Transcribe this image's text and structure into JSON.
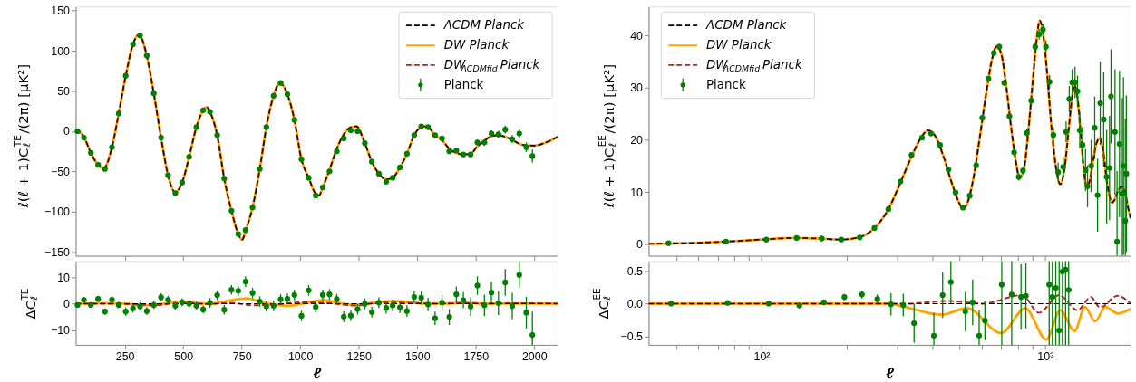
{
  "chart_data": [
    {
      "type": "line",
      "ylabel": "ℓ(ℓ + 1)C$_{ℓ}$$^{TE}$/(2π)   [μK²]",
      "xlim": [
        40,
        2100
      ],
      "xticks": [
        250,
        500,
        750,
        1000,
        1250,
        1500,
        1750,
        2000
      ],
      "ylim": [
        -155,
        155
      ],
      "yticks": [
        -150,
        -100,
        -50,
        0,
        50,
        100,
        150
      ],
      "tick_labels": "y",
      "legend": "top right",
      "series": [
        {
          "name": "ΛCDM  Planck",
          "color": "#000000",
          "line_style": "dashed",
          "x": [
            40,
            75,
            105,
            136,
            160,
            195,
            224,
            254,
            285,
            310,
            344,
            374,
            405,
            435,
            465,
            495,
            525,
            556,
            585,
            600,
            614,
            645,
            675,
            706,
            735,
            752,
            766,
            796,
            827,
            855,
            886,
            912,
            945,
            975,
            1005,
            1036,
            1066,
            1080,
            1096,
            1125,
            1156,
            1186,
            1216,
            1240,
            1276,
            1306,
            1336,
            1367,
            1395,
            1426,
            1456,
            1487,
            1525,
            1546,
            1576,
            1606,
            1637,
            1667,
            1697,
            1728,
            1757,
            1787,
            1817,
            1847,
            1876,
            1906,
            1950,
            2000,
            2050,
            2100
          ],
          "values": [
            2,
            -7,
            -27,
            -42,
            -46,
            -20,
            22,
            69,
            108,
            120,
            94,
            47,
            -8,
            -55,
            -76,
            -64,
            -32,
            5,
            26,
            30,
            24,
            -5,
            -59,
            -99,
            -128,
            -135,
            -124,
            -95,
            -47,
            5,
            44,
            60,
            46,
            14,
            -35,
            -58,
            -78,
            -80,
            -70,
            -48,
            -22,
            -4,
            5,
            6,
            -15,
            -38,
            -53,
            -60,
            -58,
            -45,
            -28,
            -5,
            6,
            5,
            -5,
            -11,
            -22,
            -27,
            -29,
            -28,
            -19,
            -12,
            -6,
            -5,
            -7,
            -11,
            -17,
            -18,
            -14,
            -7
          ]
        },
        {
          "name": "DW  Planck",
          "color": "#ffa500",
          "line_style": "solid",
          "x": [
            40,
            75,
            105,
            136,
            160,
            195,
            224,
            254,
            285,
            310,
            344,
            374,
            405,
            435,
            465,
            495,
            525,
            556,
            585,
            600,
            614,
            645,
            675,
            706,
            735,
            752,
            766,
            796,
            827,
            855,
            886,
            912,
            945,
            975,
            1005,
            1036,
            1066,
            1080,
            1096,
            1125,
            1156,
            1186,
            1216,
            1240,
            1276,
            1306,
            1336,
            1367,
            1395,
            1426,
            1456,
            1487,
            1525,
            1546,
            1576,
            1606,
            1637,
            1667,
            1697,
            1728,
            1757,
            1787,
            1817,
            1847,
            1876,
            1906,
            1950,
            2000,
            2050,
            2100
          ],
          "values": [
            2,
            -7,
            -27,
            -42,
            -46,
            -20,
            22,
            69,
            108,
            120,
            94,
            47,
            -8,
            -55,
            -76,
            -64,
            -32,
            5,
            26,
            30,
            24,
            -5,
            -59,
            -99,
            -128,
            -135,
            -124,
            -95,
            -47,
            5,
            44,
            60,
            46,
            14,
            -35,
            -58,
            -78,
            -80,
            -70,
            -48,
            -22,
            -4,
            5,
            6,
            -15,
            -38,
            -53,
            -60,
            -58,
            -45,
            -28,
            -5,
            6,
            5,
            -5,
            -11,
            -22,
            -27,
            -29,
            -28,
            -19,
            -12,
            -6,
            -5,
            -7,
            -11,
            -17,
            -18,
            -14,
            -7
          ]
        },
        {
          "name": "DW$_{ΛCDMfid}$  Planck",
          "color": "#a52a2a",
          "line_style": "dashed",
          "x": [
            40,
            75,
            105,
            136,
            160,
            195,
            224,
            254,
            285,
            310,
            344,
            374,
            405,
            435,
            465,
            495,
            525,
            556,
            585,
            600,
            614,
            645,
            675,
            706,
            735,
            752,
            766,
            796,
            827,
            855,
            886,
            912,
            945,
            975,
            1005,
            1036,
            1066,
            1080,
            1096,
            1125,
            1156,
            1186,
            1216,
            1240,
            1276,
            1306,
            1336,
            1367,
            1395,
            1426,
            1456,
            1487,
            1525,
            1546,
            1576,
            1606,
            1637,
            1667,
            1697,
            1728,
            1757,
            1787,
            1817,
            1847,
            1876,
            1906,
            1950,
            2000,
            2050,
            2100
          ],
          "values": [
            2,
            -7,
            -27,
            -42,
            -46,
            -20,
            22,
            69,
            108,
            120,
            94,
            47,
            -8,
            -55,
            -76,
            -64,
            -32,
            5,
            26,
            30,
            24,
            -5,
            -59,
            -99,
            -128,
            -135,
            -124,
            -95,
            -47,
            5,
            44,
            60,
            46,
            14,
            -35,
            -58,
            -78,
            -80,
            -70,
            -48,
            -22,
            -4,
            5,
            6,
            -15,
            -38,
            -53,
            -60,
            -58,
            -45,
            -28,
            -5,
            6,
            5,
            -5,
            -11,
            -22,
            -27,
            -29,
            -28,
            -19,
            -12,
            -6,
            -5,
            -7,
            -11,
            -17,
            -18,
            -14,
            -7
          ]
        },
        {
          "name": "Planck",
          "color": "#008000",
          "type": "scatter",
          "marker": "circle",
          "x": [
            48,
            75,
            105,
            136,
            165,
            195,
            224,
            254,
            285,
            315,
            344,
            374,
            405,
            435,
            466,
            495,
            525,
            556,
            585,
            614,
            645,
            675,
            706,
            735,
            766,
            796,
            827,
            855,
            886,
            916,
            945,
            975,
            1005,
            1036,
            1066,
            1096,
            1125,
            1156,
            1186,
            1216,
            1245,
            1276,
            1306,
            1336,
            1367,
            1395,
            1426,
            1456,
            1487,
            1517,
            1546,
            1576,
            1606,
            1637,
            1667,
            1697,
            1728,
            1757,
            1787,
            1817,
            1847,
            1876,
            1906,
            1936,
            1966,
            1992
          ],
          "values": [
            0,
            -8,
            -27,
            -42,
            -47,
            -20,
            22,
            69,
            108,
            119,
            94,
            47,
            -8,
            -55,
            -77,
            -64,
            -32,
            5,
            26,
            24,
            -5,
            -59,
            -99,
            -128,
            -123,
            -95,
            -47,
            5,
            44,
            60,
            46,
            14,
            -35,
            -58,
            -80,
            -70,
            -50,
            -25,
            -9,
            1,
            0,
            -15,
            -38,
            -53,
            -63,
            -58,
            -45,
            -28,
            -5,
            6,
            5,
            -5,
            -9,
            -25,
            -24,
            -29,
            -29,
            -14,
            -14,
            -3,
            -4,
            2,
            -10,
            -3,
            -20,
            -31
          ],
          "errors": [
            1,
            1,
            1,
            1.2,
            1.2,
            1.2,
            1.2,
            1.5,
            1.5,
            1.5,
            1.5,
            1.5,
            1.5,
            1.5,
            1.5,
            1.5,
            1.5,
            1.5,
            1.5,
            1.8,
            1.8,
            1.8,
            1.8,
            1.8,
            2,
            2,
            2,
            2,
            2,
            2,
            2,
            2,
            2,
            2,
            2,
            2,
            2,
            2,
            2,
            2,
            2,
            2,
            2,
            2,
            2.2,
            2.2,
            2.2,
            2.2,
            2.2,
            2.5,
            2.5,
            2.5,
            3,
            3,
            3,
            3,
            3.5,
            3.5,
            4,
            4,
            4.5,
            5,
            5,
            5,
            6,
            8
          ]
        }
      ]
    },
    {
      "type": "line",
      "ylabel": "ℓ(ℓ + 1)C$_{ℓ}$$^{EE}$/(2π)   [μK²]",
      "log": "x",
      "xlim": [
        40,
        2000
      ],
      "xticks": [
        {
          "value": 50,
          "label": null
        },
        {
          "value": 60,
          "label": null
        },
        {
          "value": 70,
          "label": null
        },
        {
          "value": 80,
          "label": null
        },
        {
          "value": 90,
          "label": null
        },
        {
          "value": 100,
          "label": null
        },
        {
          "value": 200,
          "label": null
        },
        {
          "value": 300,
          "label": null
        },
        {
          "value": 400,
          "label": null
        },
        {
          "value": 500,
          "label": null
        },
        {
          "value": 600,
          "label": null
        },
        {
          "value": 700,
          "label": null
        },
        {
          "value": 800,
          "label": null
        },
        {
          "value": 900,
          "label": null
        },
        {
          "value": 1000,
          "label": null
        },
        {
          "value": 2000,
          "label": null
        }
      ],
      "ylim": [
        -2.2,
        45.5
      ],
      "yticks": [
        0,
        10,
        20,
        30,
        40
      ],
      "tick_labels": "y",
      "legend": "top left",
      "series": [
        {
          "name": "ΛCDM  Planck",
          "color": "#000000",
          "line_style": "dashed",
          "x": [
            40,
            60,
            80,
            100,
            130,
            160,
            190,
            220,
            250,
            280,
            310,
            340,
            365,
            386,
            410,
            440,
            470,
            495,
            513,
            535,
            560,
            590,
            620,
            650,
            675,
            700,
            730,
            760,
            790,
            812,
            840,
            870,
            900,
            930,
            957,
            985,
            1015,
            1050,
            1090,
            1130,
            1170,
            1210,
            1240,
            1269,
            1300,
            1340,
            1370,
            1399,
            1440,
            1480,
            1520,
            1559,
            1600,
            1650,
            1700,
            1723,
            1760,
            1800,
            1840,
            1875,
            1920,
            1960,
            2000
          ],
          "values": [
            0.1,
            0.3,
            0.6,
            0.9,
            1.2,
            1.1,
            0.9,
            1.3,
            3.1,
            6.7,
            12,
            17.1,
            20.4,
            21.8,
            20.7,
            16.5,
            11.5,
            8.2,
            6.8,
            8.3,
            13,
            21,
            29,
            35.5,
            37.9,
            36.5,
            30,
            22,
            15.5,
            12.7,
            14.2,
            21,
            30,
            38.5,
            42.8,
            40,
            33,
            23,
            15,
            11.5,
            14.5,
            22,
            27.5,
            30.5,
            28,
            20,
            14,
            11,
            12.5,
            16.5,
            19.5,
            20.3,
            18,
            12,
            8.5,
            8,
            8.6,
            10,
            10.9,
            11,
            9.5,
            7,
            5
          ]
        },
        {
          "name": "DW  Planck",
          "color": "#ffa500",
          "line_style": "solid",
          "x": [
            40,
            60,
            80,
            100,
            130,
            160,
            190,
            220,
            250,
            280,
            310,
            340,
            365,
            386,
            410,
            440,
            470,
            495,
            513,
            535,
            560,
            590,
            620,
            650,
            675,
            700,
            730,
            760,
            790,
            812,
            840,
            870,
            900,
            930,
            957,
            985,
            1015,
            1050,
            1090,
            1130,
            1170,
            1210,
            1240,
            1269,
            1300,
            1340,
            1370,
            1399,
            1440,
            1480,
            1520,
            1559,
            1600,
            1650,
            1700,
            1723,
            1760,
            1800,
            1840,
            1875,
            1920,
            1960,
            2000
          ],
          "values": [
            0.1,
            0.3,
            0.6,
            0.9,
            1.2,
            1.1,
            0.9,
            1.3,
            3.1,
            6.7,
            12,
            17.1,
            20.4,
            21.8,
            20.7,
            16.5,
            11.5,
            8.2,
            6.8,
            8.3,
            13,
            21,
            29,
            35.5,
            37.9,
            36.5,
            30,
            22,
            15.5,
            12.7,
            14.2,
            21,
            30,
            38.5,
            42.8,
            40,
            33,
            23,
            15,
            11.5,
            14.5,
            22,
            27.5,
            30.5,
            28,
            20,
            14,
            11,
            12.5,
            16.5,
            19.5,
            20.3,
            18,
            12,
            8.5,
            8,
            8.6,
            10,
            10.9,
            11,
            9.5,
            7,
            5
          ]
        },
        {
          "name": "DW$_{ΛCDMfid}$  Planck",
          "color": "#a52a2a",
          "line_style": "dashed",
          "x": [
            40,
            60,
            80,
            100,
            130,
            160,
            190,
            220,
            250,
            280,
            310,
            340,
            365,
            386,
            410,
            440,
            470,
            495,
            513,
            535,
            560,
            590,
            620,
            650,
            675,
            700,
            730,
            760,
            790,
            812,
            840,
            870,
            900,
            930,
            957,
            985,
            1015,
            1050,
            1090,
            1130,
            1170,
            1210,
            1240,
            1269,
            1300,
            1340,
            1370,
            1399,
            1440,
            1480,
            1520,
            1559,
            1600,
            1650,
            1700,
            1723,
            1760,
            1800,
            1840,
            1875,
            1920,
            1960,
            2000
          ],
          "values": [
            0.1,
            0.3,
            0.6,
            0.9,
            1.2,
            1.1,
            0.9,
            1.3,
            3.1,
            6.7,
            12,
            17.1,
            20.4,
            21.8,
            20.7,
            16.5,
            11.5,
            8.2,
            6.8,
            8.3,
            13,
            21,
            29,
            35.5,
            37.9,
            36.5,
            30,
            22,
            15.5,
            12.7,
            14.2,
            21,
            30,
            38.5,
            42.8,
            40,
            33,
            23,
            15,
            11.5,
            14.5,
            22,
            27.5,
            30.5,
            28,
            20,
            14,
            11,
            12.5,
            16.5,
            19.5,
            20.3,
            18,
            12,
            8.5,
            8,
            8.6,
            10,
            10.9,
            11,
            9.5,
            7,
            5
          ]
        },
        {
          "name": "Planck",
          "color": "#008000",
          "type": "scatter",
          "marker": "circle",
          "x": [
            47,
            75,
            104,
            133,
            163,
            191,
            222,
            250,
            280,
            309,
            338,
            368,
            396,
            426,
            456,
            483,
            513,
            542,
            571,
            600,
            631,
            659,
            689,
            717,
            748,
            777,
            807,
            835,
            862,
            893,
            922,
            952,
            982,
            1006,
            1036,
            1069,
            1111,
            1157,
            1185,
            1216,
            1245,
            1274,
            1300,
            1324,
            1355,
            1387,
            1410,
            1452,
            1495,
            1530,
            1563,
            1608,
            1647,
            1686,
            1706,
            1762,
            1792,
            1828,
            1871,
            1888,
            1916,
            1932
          ],
          "values": [
            0.2,
            0.5,
            0.9,
            1.2,
            1.1,
            0.9,
            1.3,
            3.1,
            6.7,
            12.0,
            17.1,
            20.4,
            21.2,
            19.0,
            14.3,
            9.9,
            7.0,
            9.3,
            15.1,
            24.2,
            31.7,
            36.6,
            37.8,
            30.9,
            24.5,
            17.6,
            12.9,
            14.1,
            21.3,
            27.5,
            37.8,
            40.2,
            41.1,
            37.8,
            31.1,
            20.9,
            13.8,
            14.8,
            21.5,
            27.8,
            31.0,
            31.0,
            29.3,
            21.8,
            19.0,
            14.2,
            11.1,
            15.0,
            22.3,
            9.4,
            27.0,
            23.9,
            12.9,
            14.6,
            28.3,
            21.5,
            0.5,
            19.2,
            9.7,
            15.0,
            4.5,
            13.5
          ],
          "errors": [
            0.3,
            0.3,
            0.3,
            0.3,
            0.3,
            0.3,
            0.3,
            0.3,
            0.3,
            0.4,
            0.4,
            0.4,
            0.4,
            0.4,
            0.4,
            0.4,
            0.4,
            0.4,
            0.5,
            0.5,
            0.5,
            0.5,
            0.6,
            0.6,
            0.6,
            0.6,
            0.7,
            0.7,
            0.8,
            0.8,
            0.9,
            1,
            1,
            1.2,
            1.3,
            1.5,
            1.8,
            2,
            2,
            2.5,
            2.5,
            3,
            3,
            3.5,
            3.5,
            4,
            4,
            5,
            6,
            7,
            8,
            9,
            9,
            10,
            9,
            12,
            [
              -2.2,
              14
            ],
            14,
            [
              -2.2,
              28
            ],
            17,
            [
              -2.2,
              24
            ],
            15
          ]
        }
      ]
    },
    {
      "type": "line",
      "ylabel": "ΔC$_{ℓ}$$^{TE}$",
      "xlabel": "ℓ",
      "xlim": [
        40,
        2100
      ],
      "xticks": [
        250,
        500,
        750,
        1000,
        1250,
        1500,
        1750,
        2000
      ],
      "ylim": [
        -15.5,
        16
      ],
      "yticks": [
        -10,
        0,
        10
      ],
      "series": [
        {
          "color": "#000000",
          "line_style": "dashed",
          "x": [
            40,
            2100
          ],
          "values": [
            0,
            0
          ]
        },
        {
          "color": "#ffa500",
          "line_style": "solid",
          "x": [
            40,
            150,
            250,
            350,
            420,
            500,
            560,
            620,
            700,
            770,
            840,
            900,
            950,
            1010,
            1100,
            1180,
            1230,
            1300,
            1400,
            1530,
            1600,
            1700,
            1800,
            2100
          ],
          "values": [
            0,
            0.2,
            0,
            -0.6,
            0,
            0.8,
            0.3,
            0,
            1.2,
            2,
            0.5,
            -0.5,
            -0.8,
            0,
            1.3,
            0,
            -0.5,
            0.3,
            1,
            0,
            0,
            0.3,
            0,
            0
          ]
        },
        {
          "color": "#a52a2a",
          "line_style": "dashed",
          "x": [
            40,
            200,
            300,
            380,
            450,
            520,
            600,
            700,
            800,
            900,
            1000,
            1100,
            1200,
            1250,
            1300,
            1400,
            1500,
            1600,
            1700,
            1800,
            1900,
            2100
          ],
          "values": [
            0,
            0,
            -0.3,
            -0.6,
            0,
            0.3,
            -0.2,
            0.3,
            -0.6,
            -0.3,
            0.5,
            0.4,
            -0.5,
            -0.7,
            0,
            0.5,
            0.2,
            0,
            0.3,
            0,
            0.2,
            0
          ]
        },
        {
          "color": "#008000",
          "type": "scatter",
          "marker": "circle",
          "x": [
            48,
            75,
            105,
            136,
            165,
            195,
            224,
            254,
            285,
            315,
            344,
            374,
            405,
            435,
            466,
            495,
            525,
            556,
            585,
            614,
            645,
            675,
            706,
            735,
            766,
            796,
            827,
            855,
            886,
            916,
            945,
            975,
            1005,
            1036,
            1066,
            1096,
            1125,
            1156,
            1186,
            1216,
            1245,
            1276,
            1306,
            1336,
            1367,
            1395,
            1426,
            1456,
            1487,
            1517,
            1546,
            1576,
            1606,
            1637,
            1667,
            1697,
            1728,
            1757,
            1787,
            1817,
            1847,
            1876,
            1906,
            1936,
            1966,
            1992
          ],
          "values": [
            -0.5,
            1.4,
            -0.5,
            1.8,
            -3,
            1.5,
            -0.5,
            -3,
            -1.8,
            -1,
            -2.8,
            -0.5,
            2.4,
            1.4,
            -0.8,
            0.5,
            0,
            -0.8,
            -2.2,
            0.3,
            3.2,
            -2.3,
            5.2,
            4.8,
            8.3,
            4,
            0.8,
            -1,
            -0.8,
            1.6,
            1.8,
            3.3,
            -4.6,
            5,
            -1.3,
            3.3,
            3.5,
            1.7,
            -4.9,
            -4.5,
            -2.1,
            -0.1,
            -3.2,
            0.4,
            -1.6,
            -0.7,
            -1.4,
            -2.8,
            2.5,
            2.2,
            -0.3,
            -5.5,
            0.4,
            -5,
            3.5,
            1.3,
            -1.1,
            6.8,
            -0.6,
            4.2,
            0.2,
            8,
            -0.9,
            10.8,
            -3.4,
            -11.8
          ],
          "errors": [
            1,
            1,
            1,
            1.2,
            1.2,
            1.2,
            1.2,
            1.5,
            1.5,
            1.5,
            1.5,
            1.5,
            1.5,
            1.5,
            1.5,
            1.5,
            1.5,
            1.5,
            1.5,
            1.8,
            1.8,
            1.8,
            1.8,
            1.8,
            2,
            2,
            2,
            2,
            2,
            2,
            2,
            2,
            2,
            2,
            2,
            2,
            2,
            2,
            2,
            2,
            2,
            2,
            2,
            2,
            2.2,
            2.2,
            2.2,
            2.2,
            2.2,
            2.5,
            2.5,
            2.5,
            3,
            3,
            3,
            3,
            3.5,
            3.5,
            4,
            4,
            4.5,
            5,
            5,
            [
              6,
              16
            ],
            6,
            [
              -15.5,
              -3
            ]
          ]
        }
      ]
    },
    {
      "type": "line",
      "ylabel": "ΔC$_{ℓ}$$^{EE}$",
      "xlabel": "ℓ",
      "log": "x",
      "xlim": [
        40,
        2000
      ],
      "xticks": [
        {
          "value": 50,
          "label": null
        },
        {
          "value": 60,
          "label": null
        },
        {
          "value": 70,
          "label": null
        },
        {
          "value": 80,
          "label": null
        },
        {
          "value": 90,
          "label": null
        },
        {
          "value": 100,
          "label": "10²"
        },
        {
          "value": 200,
          "label": null
        },
        {
          "value": 300,
          "label": null
        },
        {
          "value": 400,
          "label": null
        },
        {
          "value": 500,
          "label": null
        },
        {
          "value": 600,
          "label": null
        },
        {
          "value": 700,
          "label": null
        },
        {
          "value": 800,
          "label": null
        },
        {
          "value": 900,
          "label": null
        },
        {
          "value": 1000,
          "label": "10³"
        },
        {
          "value": 2000,
          "label": null
        }
      ],
      "ylim": [
        -0.63,
        0.65
      ],
      "yticks": [
        -0.5,
        {
          "value": 0,
          "label": "0.0"
        },
        0.5
      ],
      "series": [
        {
          "color": "#000000",
          "line_style": "dashed",
          "x": [
            40,
            2000
          ],
          "values": [
            0,
            0
          ]
        },
        {
          "color": "#ffa500",
          "line_style": "solid",
          "x": [
            40,
            280,
            320,
            430,
            530,
            700,
            850,
            1010,
            1130,
            1270,
            1380,
            1500,
            1630,
            1800,
            2000
          ],
          "values": [
            0,
            0,
            -0.05,
            -0.17,
            -0.07,
            -0.45,
            -0.07,
            -0.55,
            -0.1,
            -0.42,
            -0.05,
            -0.27,
            -0.05,
            -0.15,
            -0.08
          ]
        },
        {
          "color": "#a52a2a",
          "line_style": "dashed",
          "x": [
            40,
            320,
            460,
            600,
            830,
            950,
            1120,
            1300,
            1450,
            1560,
            1800,
            2000
          ],
          "values": [
            0,
            0,
            0.04,
            0,
            0.13,
            -0.14,
            0.13,
            -0.1,
            0.1,
            -0.06,
            0.12,
            0
          ]
        },
        {
          "color": "#008000",
          "type": "scatter",
          "marker": "circle",
          "x": [
            48,
            76,
            106,
            136,
            166,
            196,
            226,
            256,
            286,
            316,
            345,
            405,
            435,
            465,
            523,
            555,
            585,
            613,
            703,
            762,
            822,
            855,
            1033,
            1060,
            1090,
            1120,
            1150,
            1180,
            1210
          ],
          "values": [
            0.0,
            0.01,
            0.0,
            -0.03,
            0.02,
            0.1,
            0.14,
            0.07,
            -0.01,
            -0.02,
            -0.3,
            -0.49,
            0.13,
            0.33,
            -0.12,
            0.02,
            -0.49,
            -0.26,
            0.29,
            0.14,
            0.1,
            0.12,
            0.29,
            0.1,
            0.24,
            -0.41,
            0.49,
            0.52,
            0.21
          ],
          "errors": [
            null,
            null,
            null,
            0.03,
            0.04,
            0.05,
            0.06,
            0.07,
            0.17,
            0.17,
            0.3,
            [
              -0.63,
              -0.14
            ],
            0.35,
            [
              0,
              0.65
            ],
            0.3,
            0.35,
            [
              -0.63,
              -0.1
            ],
            0.3,
            [
              -0.63,
              0.65
            ],
            [
              -0.63,
              0.65
            ],
            0.5,
            0.5,
            [
              -0.63,
              0.65
            ],
            [
              -0.63,
              0.65
            ],
            [
              -0.63,
              0.65
            ],
            [
              -0.63,
              0.65
            ],
            [
              -0.63,
              0.65
            ],
            [
              -0.63,
              0.65
            ],
            [
              -0.63,
              0.65
            ]
          ]
        }
      ]
    }
  ]
}
